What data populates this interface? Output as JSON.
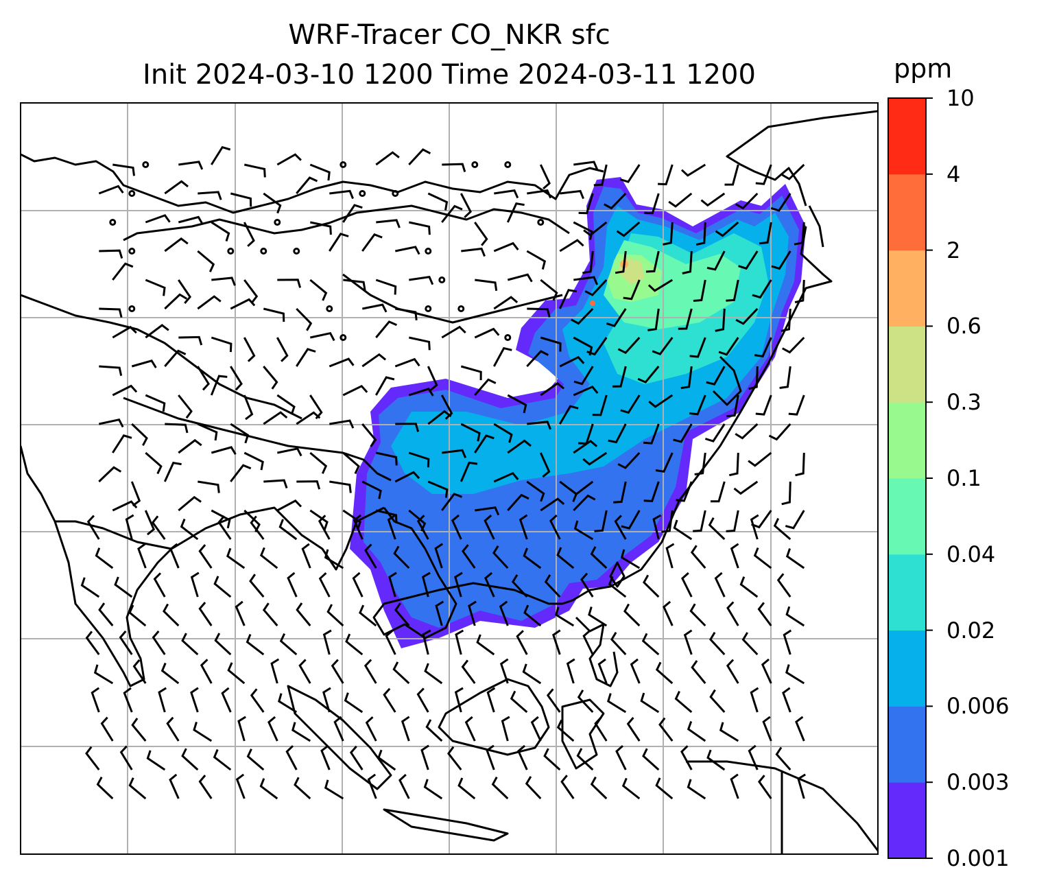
{
  "title": {
    "line1": "WRF-Tracer CO_NKR sfc",
    "line2": "Init 2024-03-10 1200 Time 2024-03-11 1200"
  },
  "colorbar": {
    "unit": "ppm",
    "levels": [
      "0.001",
      "0.003",
      "0.006",
      "0.02",
      "0.04",
      "0.1",
      "0.3",
      "0.6",
      "2",
      "4",
      "10"
    ],
    "colors": [
      "#6429fb",
      "#3373f0",
      "#06b0ea",
      "#2ee0d1",
      "#67f9b3",
      "#98fa8e",
      "#cde284",
      "#ffb060",
      "#ff6e3a",
      "#ff2b14"
    ]
  },
  "map": {
    "gridlines": true,
    "features": [
      "coastlines",
      "country-borders",
      "wind-barbs",
      "co-tracer-concentration"
    ]
  }
}
